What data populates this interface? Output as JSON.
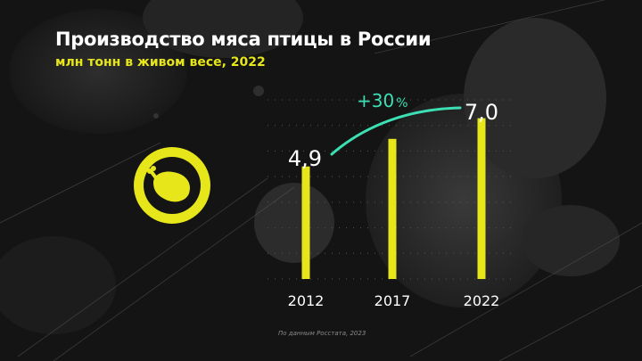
{
  "header": {
    "title": "Производство мяса птицы в России",
    "subtitle": "млн тонн в живом весе, 2022"
  },
  "badge": {
    "icon": "poultry-leg-icon"
  },
  "growth": {
    "value_text": "+30",
    "unit_text": "%"
  },
  "footer": {
    "source": "По данным Росстата, 2023"
  },
  "colors": {
    "accent": "#e6e61a",
    "growth": "#3ce0b4",
    "background": "#141414",
    "text": "#ffffff"
  },
  "chart_data": {
    "type": "bar",
    "title": "Производство мяса птицы в России",
    "subtitle": "млн тонн в живом весе, 2022",
    "categories": [
      "2012",
      "2017",
      "2022"
    ],
    "values": [
      4.9,
      null,
      7.0
    ],
    "value_labels": [
      "4,9",
      "",
      "7,0"
    ],
    "ylim": [
      0,
      7.8
    ],
    "grid": true,
    "legend": "none",
    "annotation": "+30 %"
  }
}
